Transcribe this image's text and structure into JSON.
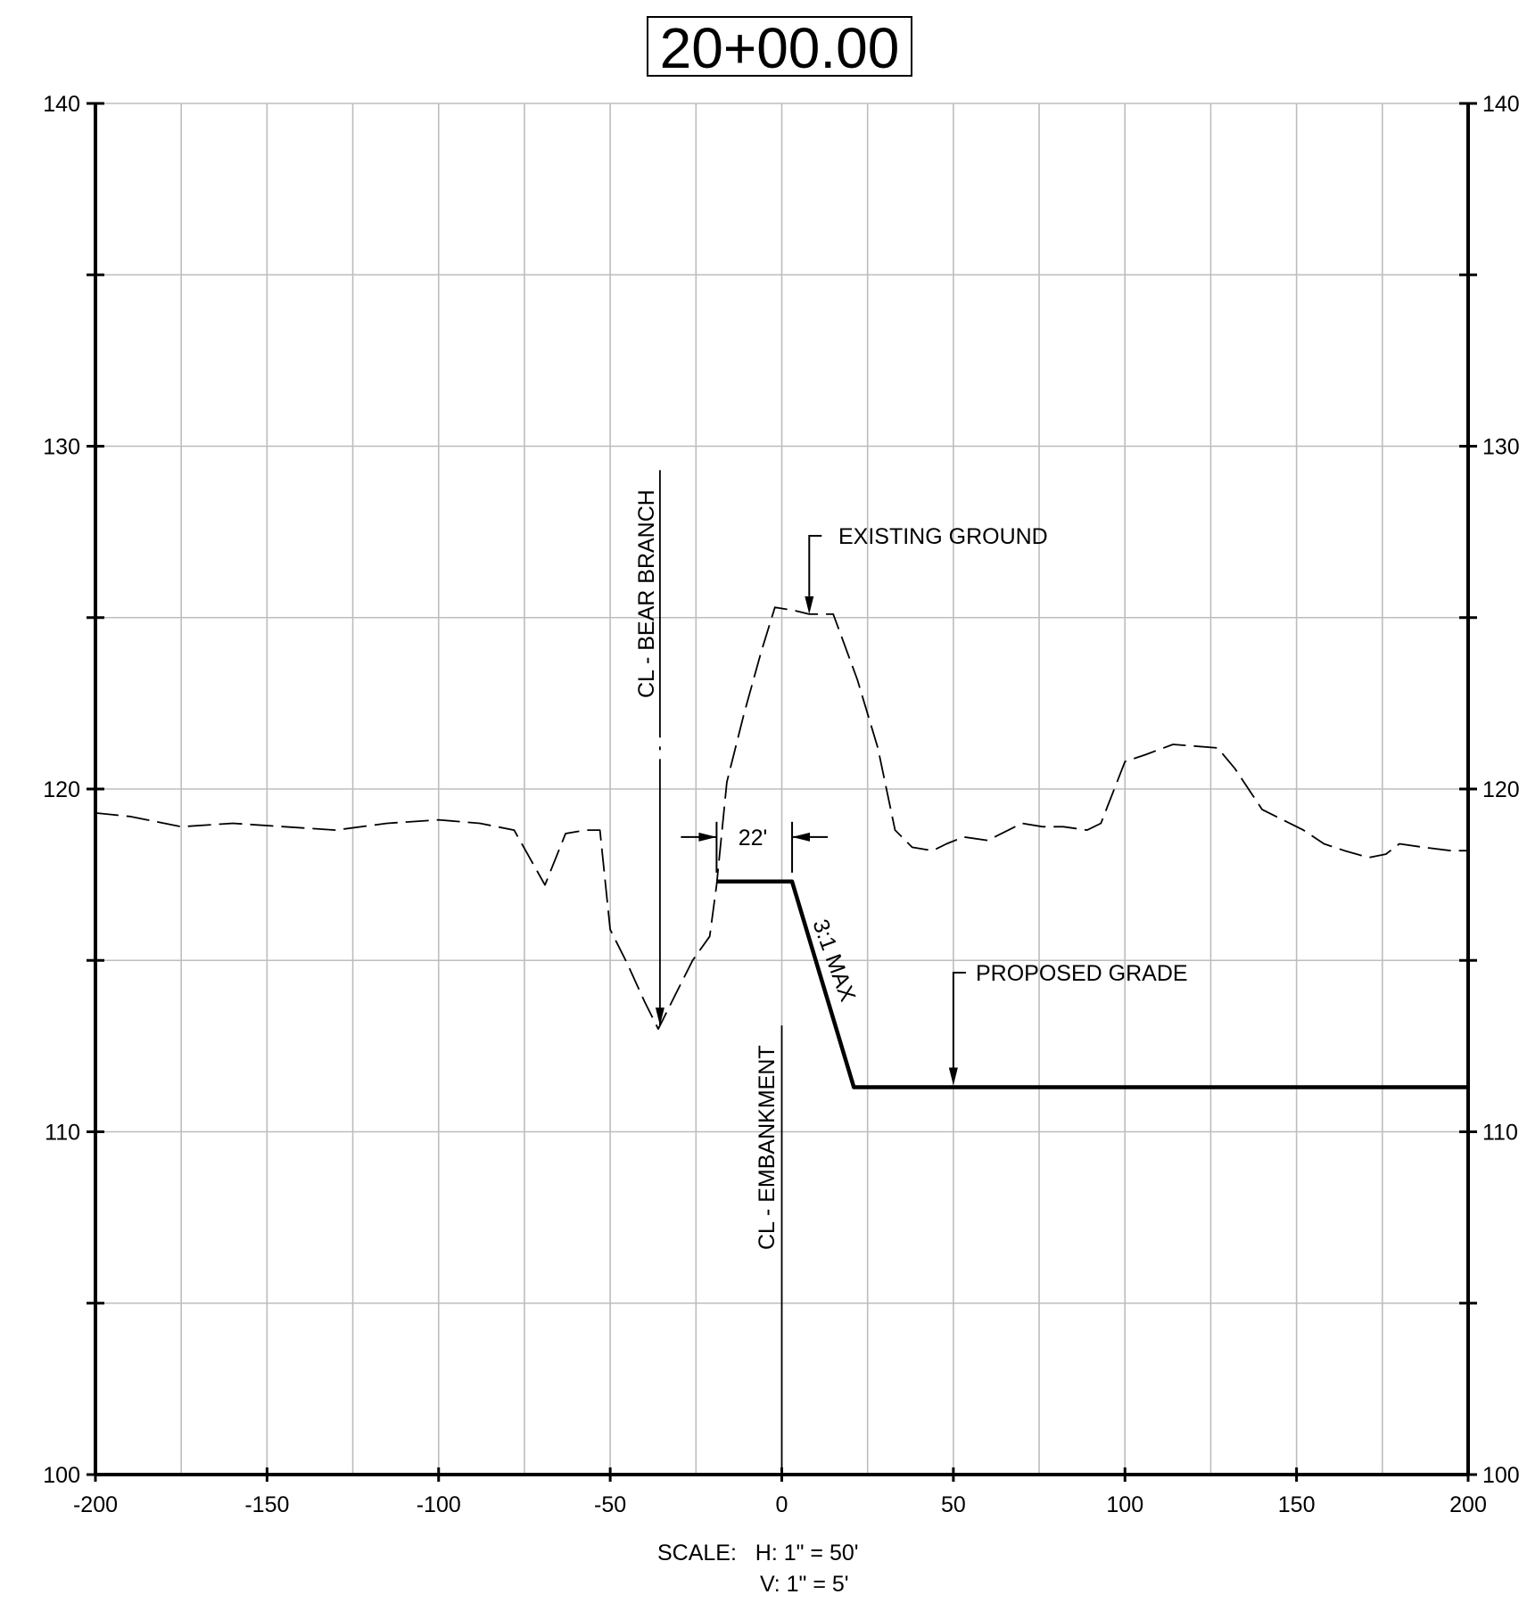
{
  "title": "20+00.00",
  "scale": {
    "h_label": "SCALE:   H: 1\" = 50'",
    "v_label": "V: 1\" = 5'"
  },
  "x_ticks": [
    "-200",
    "-150",
    "-100",
    "-50",
    "0",
    "50",
    "100",
    "150",
    "200"
  ],
  "y_ticks_left": [
    "140",
    "130",
    "120",
    "110",
    "100"
  ],
  "y_ticks_right": [
    "140",
    "130",
    "120",
    "110",
    "100"
  ],
  "annotations": {
    "existing_ground": "EXISTING GROUND",
    "proposed_grade": "PROPOSED GRADE",
    "cl_bear_branch": "CL - BEAR BRANCH",
    "cl_embankment": "CL - EMBANKMENT",
    "slope": "3:1 MAX",
    "top_width": "22'"
  },
  "chart_data": {
    "type": "line",
    "xlim": [
      -200,
      200
    ],
    "ylim": [
      100,
      140
    ],
    "x_grid_step": 25,
    "y_grid_step": 5,
    "grid": true,
    "series": [
      {
        "name": "EXISTING GROUND",
        "style": "dashed",
        "x": [
          -200,
          -190,
          -175,
          -160,
          -145,
          -130,
          -115,
          -100,
          -88,
          -78,
          -69,
          -63,
          -57,
          -53,
          -50,
          -45,
          -40,
          -36,
          -31,
          -26,
          -21,
          -19,
          -16,
          -11,
          -6,
          -2,
          4,
          8,
          15,
          22,
          28,
          33,
          38,
          44,
          48,
          53,
          60,
          70,
          76,
          82,
          89,
          93,
          100,
          106,
          114,
          127,
          132,
          140,
          146,
          152,
          158,
          164,
          171,
          176,
          180,
          187,
          195,
          200
        ],
        "y": [
          119.3,
          119.2,
          118.9,
          119.0,
          118.9,
          118.8,
          119.0,
          119.1,
          119.0,
          118.8,
          117.2,
          118.7,
          118.8,
          118.8,
          115.9,
          114.9,
          113.8,
          113.0,
          114.0,
          115.0,
          115.7,
          117.2,
          120.2,
          122.2,
          124.0,
          125.3,
          125.2,
          125.1,
          125.1,
          123.2,
          121.2,
          118.8,
          118.3,
          118.2,
          118.4,
          118.6,
          118.5,
          119.0,
          118.9,
          118.9,
          118.8,
          119.0,
          120.8,
          121.0,
          121.3,
          121.2,
          120.6,
          119.4,
          119.1,
          118.8,
          118.4,
          118.2,
          118.0,
          118.1,
          118.4,
          118.3,
          118.2,
          118.2
        ]
      },
      {
        "name": "PROPOSED GRADE",
        "style": "solid",
        "x": [
          -19,
          3,
          21,
          200
        ],
        "y": [
          117.3,
          117.3,
          111.3,
          111.3
        ]
      }
    ],
    "vertical_lines": [
      {
        "label": "CL - BEAR BRANCH",
        "x": -35.5,
        "y_top": 129.3,
        "y_bottom": 113.1,
        "style": "dash-dot"
      },
      {
        "label": "CL - EMBANKMENT",
        "x": 0,
        "y_top": 113.1,
        "y_bottom": 100,
        "style": "solid"
      }
    ],
    "dimension": {
      "label": "22'",
      "from_x": -19,
      "to_x": 3,
      "y": 118.6
    },
    "callouts": [
      {
        "text": "EXISTING GROUND",
        "x": 8,
        "y": 125.1
      },
      {
        "text": "PROPOSED GRADE",
        "x": 50,
        "y": 111.3
      },
      {
        "text": "3:1 MAX",
        "x": 12,
        "y": 114.5
      }
    ]
  }
}
